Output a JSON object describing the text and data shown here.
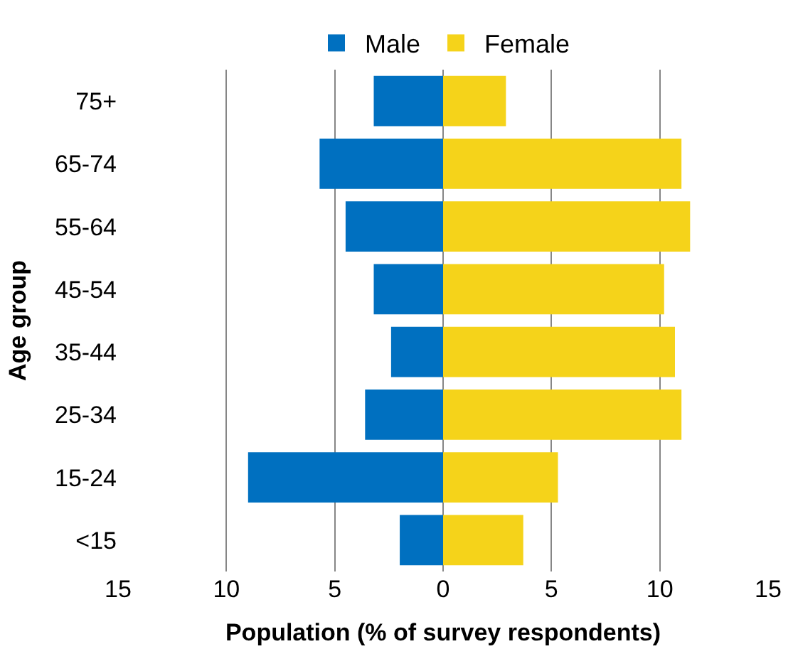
{
  "chart_data": {
    "type": "bar",
    "orientation": "horizontal",
    "xlabel": "Population (% of survey respondents)",
    "ylabel": "Age group",
    "categories": [
      "75+",
      "65-74",
      "55-64",
      "45-54",
      "35-44",
      "25-34",
      "15-24",
      "<15"
    ],
    "series": [
      {
        "name": "Male",
        "color": "#0070c0",
        "values": [
          -3.2,
          -5.7,
          -4.5,
          -3.2,
          -2.4,
          -3.6,
          -9.0,
          -2.0
        ]
      },
      {
        "name": "Female",
        "color": "#f5d31a",
        "values": [
          2.9,
          11.0,
          11.4,
          10.2,
          10.7,
          11.0,
          5.3,
          3.7
        ]
      }
    ],
    "xlim": [
      -15,
      15
    ],
    "xticks": [
      {
        "value": -15,
        "label": "15"
      },
      {
        "value": -10,
        "label": "10"
      },
      {
        "value": -5,
        "label": "5"
      },
      0,
      5,
      10,
      15
    ],
    "grid": "x",
    "legend": "top",
    "stacked": true
  }
}
